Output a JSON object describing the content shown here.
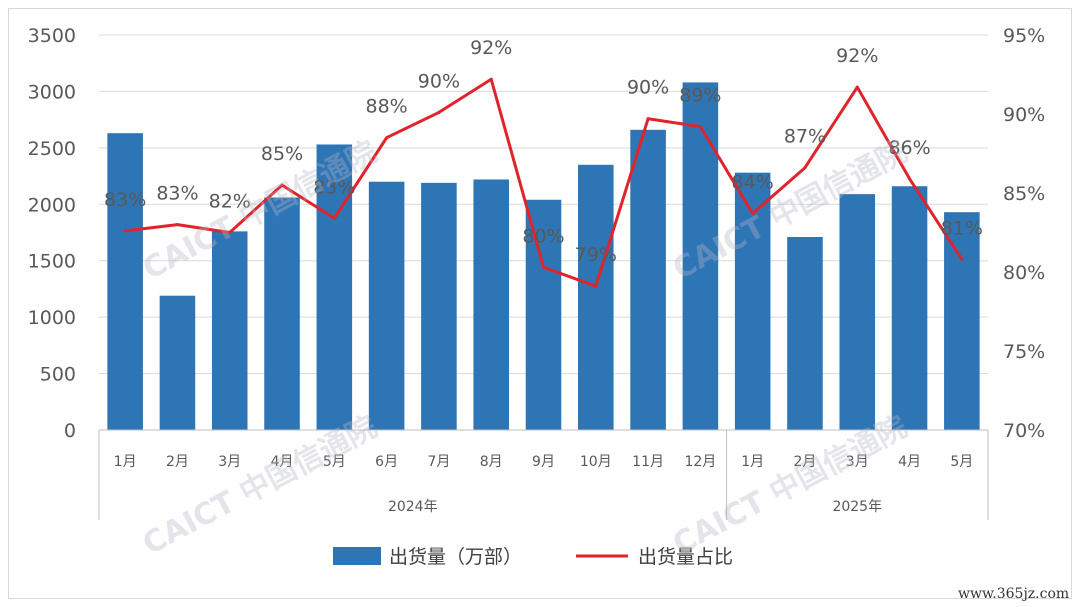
{
  "chart_data": {
    "type": "bar",
    "years": [
      {
        "label": "2024年",
        "months": [
          "1月",
          "2月",
          "3月",
          "4月",
          "5月",
          "6月",
          "7月",
          "8月",
          "9月",
          "10月",
          "11月",
          "12月"
        ]
      },
      {
        "label": "2025年",
        "months": [
          "1月",
          "2月",
          "3月",
          "4月",
          "5月"
        ]
      }
    ],
    "series": [
      {
        "name": "出货量（万部）",
        "type": "bar",
        "axis": "left",
        "color": "#2e75b6",
        "values": [
          2630,
          1190,
          1760,
          2060,
          2530,
          2200,
          2190,
          2220,
          2040,
          2350,
          2660,
          3080,
          2280,
          1710,
          2090,
          2160,
          1930
        ]
      },
      {
        "name": "出货量占比",
        "type": "line",
        "axis": "right",
        "color": "#e0242b",
        "values": [
          82.6,
          83.0,
          82.5,
          85.5,
          83.4,
          88.5,
          90.1,
          92.2,
          80.3,
          79.1,
          89.7,
          89.2,
          83.7,
          86.6,
          91.7,
          85.9,
          80.8
        ],
        "labels": [
          "83%",
          "83%",
          "82%",
          "85%",
          "83%",
          "88%",
          "90%",
          "92%",
          "80%",
          "79%",
          "90%",
          "89%",
          "84%",
          "87%",
          "92%",
          "86%",
          "81%"
        ]
      }
    ],
    "y_left": {
      "min": 0,
      "max": 3500,
      "ticks": [
        "0",
        "500",
        "1000",
        "1500",
        "2000",
        "2500",
        "3000",
        "3500"
      ]
    },
    "y_right": {
      "min": 70,
      "max": 95,
      "ticks": [
        "70%",
        "75%",
        "80%",
        "85%",
        "90%",
        "95%"
      ]
    },
    "legend_position": "bottom",
    "grid": "horizontal"
  },
  "watermark": {
    "text": "CAICT 中国信通院"
  },
  "site_label": "www.365jz.com"
}
